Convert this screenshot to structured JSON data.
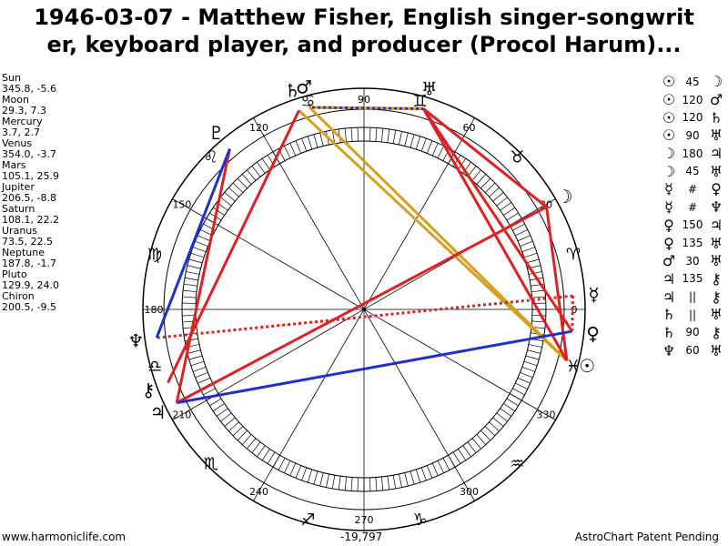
{
  "title_line1": "1946-03-07 - Matthew Fisher, English singer-songwrit",
  "title_line2": "er, keyboard player, and producer (Procol Harum)...",
  "planets": [
    {
      "name": "Sun",
      "values": "345.8, -5.6"
    },
    {
      "name": "Moon",
      "values": "29.3, 7.3"
    },
    {
      "name": "Mercury",
      "values": "3.7, 2.7"
    },
    {
      "name": "Venus",
      "values": "354.0, -3.7"
    },
    {
      "name": "Mars",
      "values": "105.1, 25.9"
    },
    {
      "name": "Jupiter",
      "values": "206.5, -8.8"
    },
    {
      "name": "Saturn",
      "values": "108.1, 22.2"
    },
    {
      "name": "Uranus",
      "values": "73.5, 22.5"
    },
    {
      "name": "Neptune",
      "values": "187.8, -1.7"
    },
    {
      "name": "Pluto",
      "values": "129.9, 24.0"
    },
    {
      "name": "Chiron",
      "values": "200.5, -9.5"
    }
  ],
  "aspects": [
    {
      "p1": "☉",
      "angle": "45",
      "p2": "☽"
    },
    {
      "p1": "☉",
      "angle": "120",
      "p2": "♂"
    },
    {
      "p1": "☉",
      "angle": "120",
      "p2": "♄"
    },
    {
      "p1": "☉",
      "angle": "90",
      "p2": "♅"
    },
    {
      "p1": "☽",
      "angle": "180",
      "p2": "♃"
    },
    {
      "p1": "☽",
      "angle": "45",
      "p2": "♅"
    },
    {
      "p1": "☿",
      "angle": "#",
      "p2": "♀"
    },
    {
      "p1": "☿",
      "angle": "#",
      "p2": "♆"
    },
    {
      "p1": "♀",
      "angle": "150",
      "p2": "♃"
    },
    {
      "p1": "♀",
      "angle": "135",
      "p2": "♅"
    },
    {
      "p1": "♂",
      "angle": "30",
      "p2": "♅"
    },
    {
      "p1": "♃",
      "angle": "135",
      "p2": "⚷"
    },
    {
      "p1": "♃",
      "angle": "||",
      "p2": "⚷"
    },
    {
      "p1": "♄",
      "angle": "||",
      "p2": "♅"
    },
    {
      "p1": "♄",
      "angle": "90",
      "p2": "⚷"
    },
    {
      "p1": "♆",
      "angle": "60",
      "p2": "♅"
    }
  ],
  "degree_labels": [
    "0",
    "30",
    "60",
    "90",
    "120",
    "150",
    "180",
    "210",
    "240",
    "270",
    "300",
    "330"
  ],
  "sign_glyphs": [
    "♈",
    "♉",
    "♊",
    "♋",
    "♌",
    "♍",
    "♎",
    "♏",
    "♐",
    "♑",
    "♒",
    "♓"
  ],
  "planet_glyphs": [
    {
      "glyph": "☉",
      "pos": 345.8
    },
    {
      "glyph": "☽",
      "pos": 29.3
    },
    {
      "glyph": "☿",
      "pos": 3.7
    },
    {
      "glyph": "♀",
      "pos": 354.0
    },
    {
      "glyph": "♂",
      "pos": 105.1
    },
    {
      "glyph": "♃",
      "pos": 206.5
    },
    {
      "glyph": "♄",
      "pos": 108.1
    },
    {
      "glyph": "♅",
      "pos": 73.5
    },
    {
      "glyph": "♆",
      "pos": 187.8
    },
    {
      "glyph": "♇",
      "pos": 129.9
    },
    {
      "glyph": "⚷",
      "pos": 200.5
    }
  ],
  "aspect_lines": [
    {
      "from": 345.8,
      "to": 29.3,
      "color": "#e02020"
    },
    {
      "from": 345.8,
      "to": 105.1,
      "color": "#d4a020"
    },
    {
      "from": 345.8,
      "to": 108.1,
      "color": "#d4a020"
    },
    {
      "from": 345.8,
      "to": 73.5,
      "color": "#e02020"
    },
    {
      "from": 29.3,
      "to": 206.5,
      "color": "#e02020"
    },
    {
      "from": 29.3,
      "to": 73.5,
      "color": "#e02020"
    },
    {
      "from": 3.7,
      "to": 187.8,
      "color": "#e02020",
      "dashed": true
    },
    {
      "from": 354.0,
      "to": 206.5,
      "color": "#2030d0"
    },
    {
      "from": 354.0,
      "to": 73.5,
      "color": "#e02020"
    },
    {
      "from": 105.1,
      "to": 73.5,
      "color": "#2030d0"
    },
    {
      "from": 206.5,
      "to": 129.9,
      "color": "#e02020"
    },
    {
      "from": 187.8,
      "to": 129.9,
      "color": "#2030d0"
    },
    {
      "from": 108.1,
      "to": 200.5,
      "color": "#e02020"
    },
    {
      "from": 105.1,
      "to": 73.5,
      "color": "#d4a020",
      "dashed": true
    },
    {
      "from": 3.7,
      "to": 354.0,
      "color": "#e02020",
      "dashed": true
    }
  ],
  "footer_left": "www.harmoniclife.com",
  "footer_center": "-19,797",
  "footer_right": "AstroChart Patent Pending"
}
